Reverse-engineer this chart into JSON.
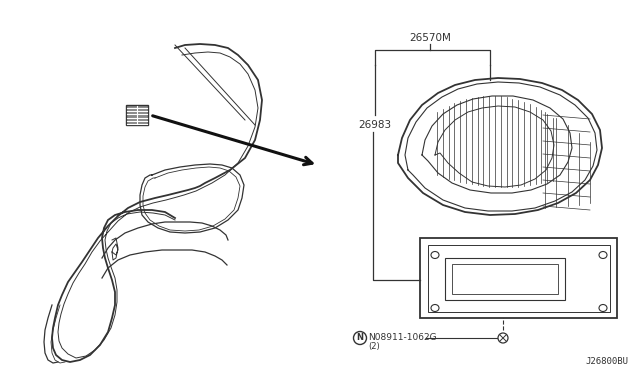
{
  "bg_color": "#ffffff",
  "line_color": "#333333",
  "fig_width": 6.4,
  "fig_height": 3.72,
  "dpi": 100,
  "label_26570M": "26570M",
  "label_26983": "26983",
  "label_bolt": "N08911-1062G",
  "label_bolt_qty": "(2)",
  "label_diagram_id": "J26800BU"
}
